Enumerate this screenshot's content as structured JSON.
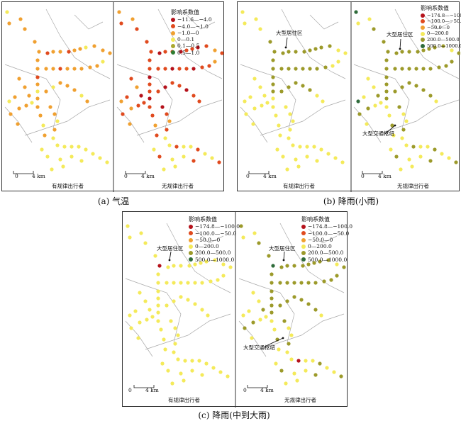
{
  "figures": [
    {
      "caption": "(a) 气温",
      "legend": {
        "title": "影响系数值",
        "items": [
          {
            "label": "−11.6—−4.0",
            "color": "#b5121b"
          },
          {
            "label": "−4.0—−1.0",
            "color": "#e04a1e"
          },
          {
            "label": "−1.0—0",
            "color": "#f0a030"
          },
          {
            "label": "0—0.1",
            "color": "#f4ea5a"
          },
          {
            "label": "0.1—0.5",
            "color": "#aaa830"
          },
          {
            "label": "0.5—1.0",
            "color": "#2e7d32"
          }
        ]
      },
      "maps": [
        {
          "subtitle": "有规律出行者",
          "scale": {
            "zero": "0",
            "dist": "4 km"
          }
        },
        {
          "subtitle": "无规律出行者",
          "scale": {
            "zero": "0",
            "dist": "4 km"
          }
        }
      ]
    },
    {
      "caption": "(b) 降雨(小雨)",
      "legend": {
        "title": "影响系数值",
        "items": [
          {
            "label": "−174.8—−100.0",
            "color": "#b5121b"
          },
          {
            "label": "−100.0—−50.0",
            "color": "#e04a1e"
          },
          {
            "label": "−50.0—0",
            "color": "#f0a030"
          },
          {
            "label": "0—200.0",
            "color": "#f4ea5a"
          },
          {
            "label": "200.0—500.0",
            "color": "#9c9a2a"
          },
          {
            "label": "500.0—1000.0",
            "color": "#2e6b3a"
          }
        ]
      },
      "maps": [
        {
          "subtitle": "有规律出行者",
          "scale": {
            "zero": "0",
            "dist": "4 km"
          },
          "annotations": [
            "大型居住区"
          ]
        },
        {
          "subtitle": "无规律出行者",
          "scale": {
            "zero": "0",
            "dist": "4 km"
          },
          "annotations": [
            "大型居住区",
            "大型交通枢纽"
          ]
        }
      ]
    },
    {
      "caption": "(c) 降雨(中到大雨)",
      "legend": {
        "title": "影响系数值",
        "items": [
          {
            "label": "−174.8—−100.0",
            "color": "#b5121b"
          },
          {
            "label": "−100.0—−50.0",
            "color": "#e04a1e"
          },
          {
            "label": "−50.0—0",
            "color": "#f0a030"
          },
          {
            "label": "0—200.0",
            "color": "#f4ea5a"
          },
          {
            "label": "200.0—500.0",
            "color": "#9c9a2a"
          },
          {
            "label": "500.0—1000.0",
            "color": "#2e6b3a"
          }
        ]
      },
      "maps": [
        {
          "subtitle": "有规律出行者",
          "scale": {
            "zero": "0",
            "dist": "4 km"
          },
          "annotations": [
            "大型居住区"
          ]
        },
        {
          "subtitle": "无规律出行者",
          "scale": {
            "zero": "0",
            "dist": "4 km"
          },
          "annotations": [
            "大型居住区",
            "大型交通枢纽"
          ]
        }
      ]
    }
  ]
}
